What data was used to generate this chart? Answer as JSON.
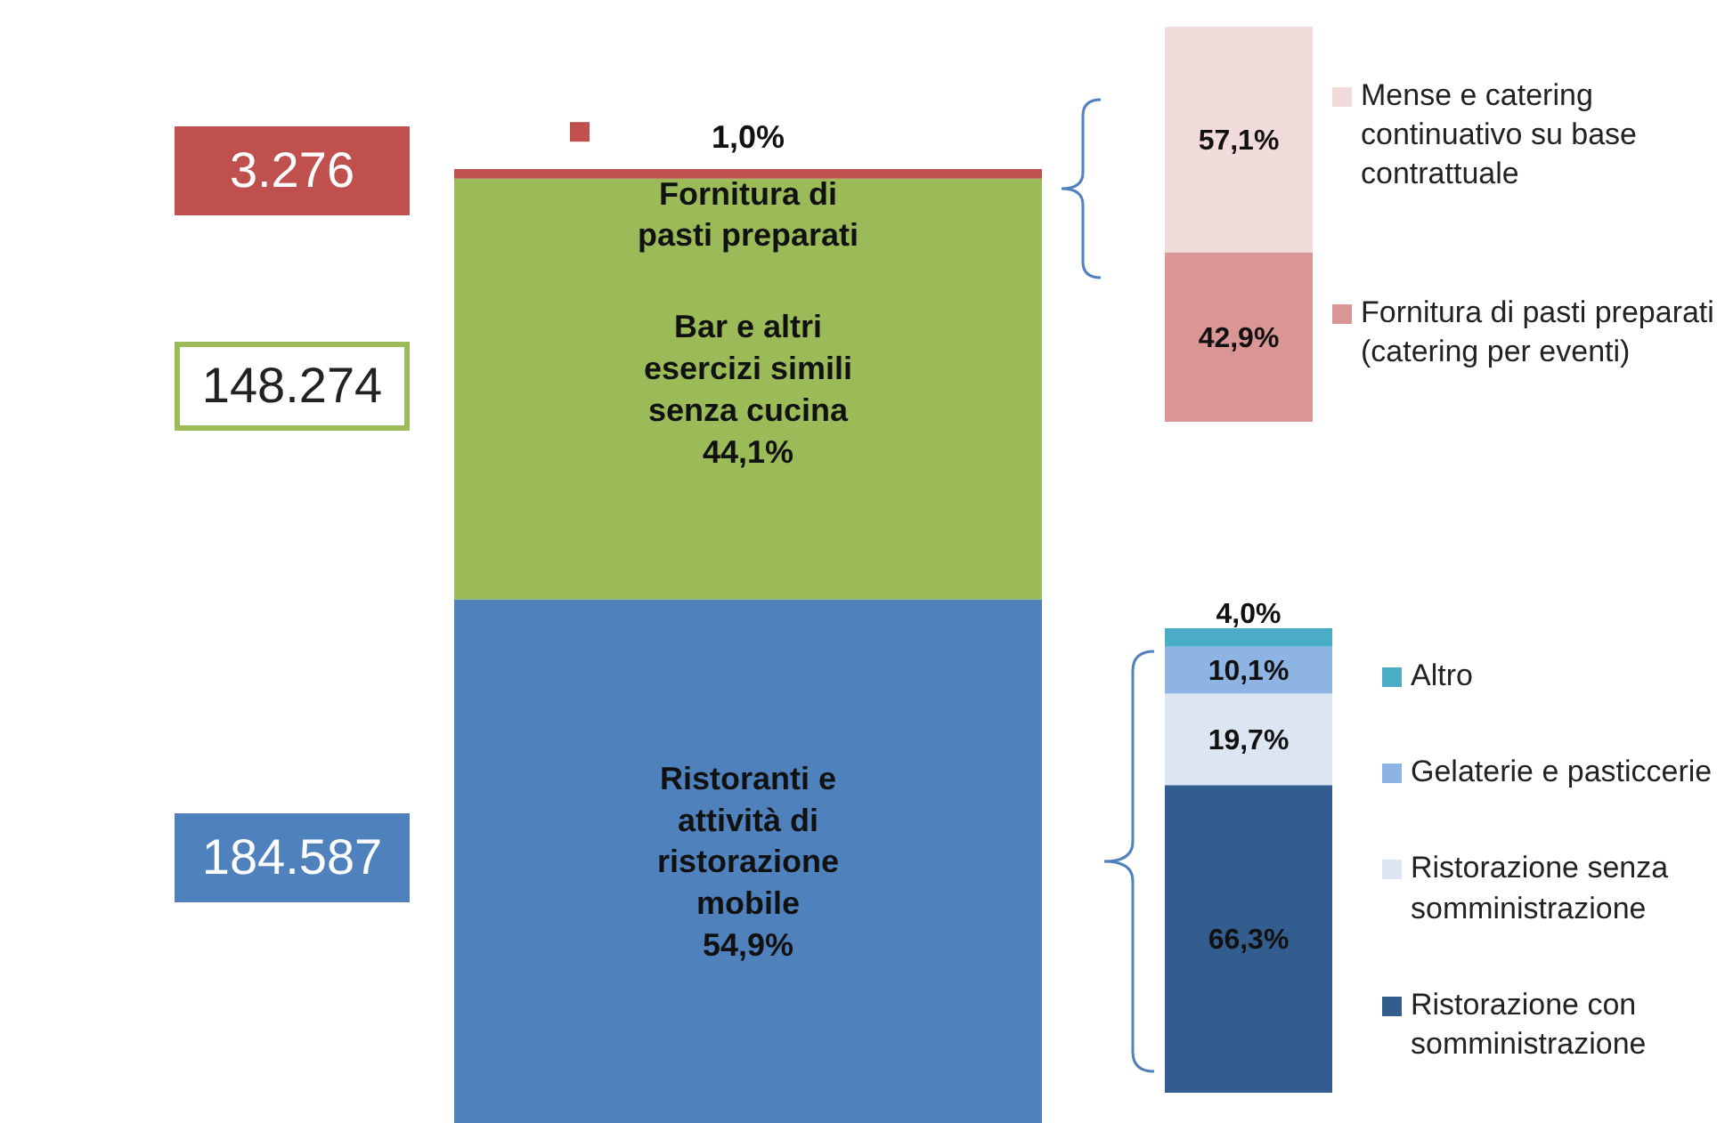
{
  "chart_data": [
    {
      "type": "bar",
      "stacked": true,
      "categories": [
        null
      ],
      "legend": false,
      "series": [
        {
          "name": "Ristoranti e attività di ristorazione mobile",
          "color": "#4f81bd",
          "values": [
            54.9
          ],
          "value_labels": [
            "54,9%"
          ]
        },
        {
          "name": "Bar e altri esercizi simili senza cucina",
          "color": "#9bbb59",
          "values": [
            44.1
          ],
          "value_labels": [
            "44,1%"
          ]
        },
        {
          "name": "Fornitura di pasti preparati",
          "color": "#c0504d",
          "values": [
            1.0
          ],
          "value_labels": [
            "1,0%"
          ]
        }
      ],
      "annotations": [
        "184.587",
        "148.274",
        "3.276"
      ]
    },
    {
      "type": "bar",
      "stacked": true,
      "categories": [
        null
      ],
      "legend": "right",
      "series": [
        {
          "name": "Fornitura di pasti preparati (catering per eventi)",
          "color": "#d99694",
          "values": [
            42.9
          ],
          "value_labels": [
            "42,9%"
          ]
        },
        {
          "name": " Mense e catering continuativo su base contrattuale",
          "color": "#f2dcdb",
          "values": [
            57.1
          ],
          "value_labels": [
            "57,1%"
          ]
        }
      ]
    },
    {
      "type": "bar",
      "stacked": true,
      "categories": [
        null
      ],
      "legend": "right",
      "series": [
        {
          "name": "Ristorazione con somministrazione",
          "color": "#335d8f",
          "values": [
            66.3
          ],
          "value_labels": [
            "66,3%"
          ]
        },
        {
          "name": "Ristorazione senza somministrazione",
          "color": "#dce6f2",
          "values": [
            19.7
          ],
          "value_labels": [
            "19,7%"
          ]
        },
        {
          "name": "Gelaterie e pasticcerie",
          "color": "#8eb4e3",
          "values": [
            10.1
          ],
          "value_labels": [
            "10,1%"
          ]
        },
        {
          "name": "Altro",
          "color": "#4bacc6",
          "values": [
            4.0
          ],
          "value_labels": [
            "4,0%"
          ]
        }
      ]
    }
  ]
}
